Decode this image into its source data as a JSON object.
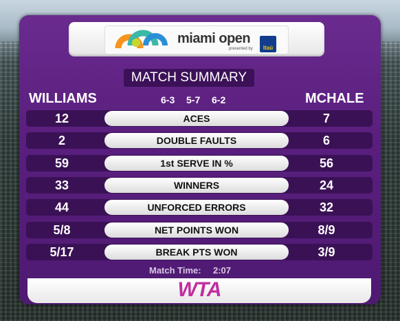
{
  "logo": {
    "brand": "miami open",
    "presented_by": "presented by",
    "sponsor": "Itaú"
  },
  "title": "MATCH SUMMARY",
  "players": {
    "left": "WILLIAMS",
    "right": "MCHALE"
  },
  "score": [
    "6-3",
    "5-7",
    "6-2"
  ],
  "stats": [
    {
      "label": "ACES",
      "left": "12",
      "right": "7"
    },
    {
      "label": "DOUBLE FAULTS",
      "left": "2",
      "right": "6"
    },
    {
      "label": "1st SERVE IN %",
      "left": "59",
      "right": "56"
    },
    {
      "label": "WINNERS",
      "left": "33",
      "right": "24"
    },
    {
      "label": "UNFORCED ERRORS",
      "left": "44",
      "right": "32"
    },
    {
      "label": "NET POINTS WON",
      "left": "5/8",
      "right": "8/9"
    },
    {
      "label": "BREAK PTS WON",
      "left": "5/17",
      "right": "3/9"
    }
  ],
  "match_time": {
    "label": "Match Time:",
    "value": "2:07"
  },
  "footer_logo": "WTA"
}
